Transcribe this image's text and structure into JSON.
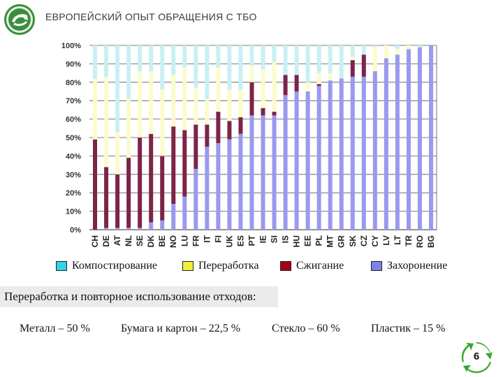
{
  "header": {
    "title": "ЕВРОПЕЙСКИЙ ОПЫТ ОБРАЩЕНИЯ С ТБО"
  },
  "colors": {
    "composting": "#c8f0f2",
    "recycling": "#fbfbcc",
    "incineration": "#7d2448",
    "landfill": "#9999ee",
    "legend_composting": "#33d3e6",
    "legend_recycling": "#f0f03a",
    "legend_incineration": "#a5001a",
    "legend_landfill": "#7a84e6",
    "logo_green": "#3c8e3c",
    "badge_green": "#37a82f"
  },
  "chart_data": {
    "type": "bar",
    "stacked": true,
    "categories": [
      "CH",
      "DE",
      "AT",
      "NL",
      "SE",
      "DK",
      "BE",
      "NO",
      "LU",
      "FR",
      "IT",
      "FI",
      "UK",
      "ES",
      "PT",
      "IE",
      "SI",
      "IS",
      "HU",
      "EE",
      "PL",
      "MT",
      "GR",
      "SK",
      "CZ",
      "CY",
      "LV",
      "LT",
      "TR",
      "RO",
      "BG"
    ],
    "yticks": [
      "0%",
      "10%",
      "20%",
      "30%",
      "40%",
      "50%",
      "60%",
      "70%",
      "80%",
      "90%",
      "100%"
    ],
    "ylim": [
      0,
      100
    ],
    "grid": true,
    "series": [
      {
        "name": "Захоронение",
        "key": "landfill",
        "values": [
          0,
          1,
          1,
          1,
          1,
          4,
          5,
          14,
          18,
          33,
          45,
          47,
          49,
          52,
          62,
          62,
          62,
          73,
          75,
          75,
          78,
          81,
          82,
          83,
          83,
          86,
          93,
          95,
          98,
          99,
          100
        ]
      },
      {
        "name": "Сжигание",
        "key": "incineration",
        "values": [
          49,
          33,
          29,
          38,
          49,
          48,
          35,
          42,
          36,
          24,
          12,
          17,
          10,
          9,
          18,
          4,
          2,
          11,
          9,
          0,
          1,
          0,
          0,
          9,
          12,
          0,
          0,
          0,
          0,
          0,
          0
        ]
      },
      {
        "name": "Переработка",
        "key": "recycling",
        "values": [
          33,
          49,
          23,
          32,
          36,
          34,
          36,
          28,
          34,
          20,
          14,
          24,
          17,
          15,
          9,
          21,
          27,
          0,
          0,
          5,
          6,
          4,
          0,
          2,
          0,
          13,
          7,
          3,
          2,
          0,
          0
        ]
      },
      {
        "name": "Компостирование",
        "key": "composting",
        "values": [
          18,
          17,
          47,
          29,
          14,
          14,
          24,
          16,
          12,
          23,
          29,
          12,
          24,
          24,
          11,
          13,
          9,
          16,
          16,
          20,
          15,
          15,
          18,
          6,
          5,
          1,
          0,
          2,
          0,
          1,
          0
        ]
      }
    ]
  },
  "legend": {
    "composting": "Компостирование",
    "recycling": "Переработка",
    "incineration": "Сжигание",
    "landfill": "Захоронение"
  },
  "subheader": "Переработка и повторное использование отходов:",
  "stats": {
    "metal": "Металл – 50 %",
    "paper": "Бумага и картон – 22,5 %",
    "glass": "Стекло – 60 %",
    "plastic": "Пластик – 15 %"
  },
  "page": {
    "number": "6"
  }
}
